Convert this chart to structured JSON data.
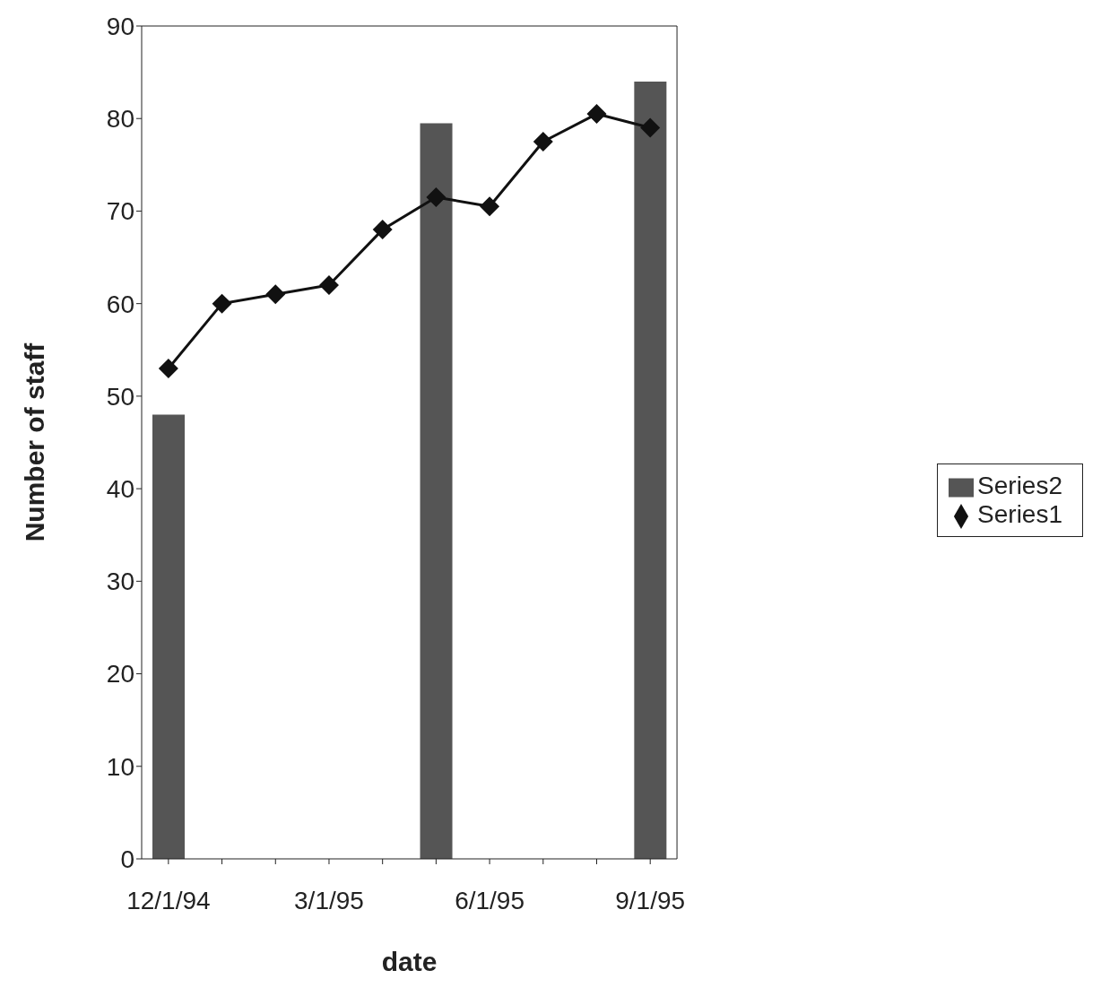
{
  "chart_data": {
    "type": "line",
    "xlabel": "date",
    "ylabel": "Number of staff",
    "categories": [
      "12/1/94",
      null,
      null,
      "3/1/95",
      null,
      null,
      "6/1/95",
      null,
      null,
      "9/1/95"
    ],
    "series": [
      {
        "name": "Series2",
        "type": "bar",
        "color": "#555555",
        "values": [
          48,
          null,
          null,
          null,
          null,
          79.5,
          null,
          null,
          null,
          84
        ]
      },
      {
        "name": "Series1",
        "color": "#111111",
        "values": [
          53,
          60,
          61,
          62,
          68,
          71.5,
          70.5,
          77.5,
          80.5,
          79
        ]
      }
    ],
    "ylim": [
      0,
      90
    ],
    "yticks": [
      0,
      10,
      20,
      30,
      40,
      50,
      60,
      70,
      80,
      90
    ],
    "grid": false,
    "legend": "right",
    "marker": "diamond",
    "line_style": "solid"
  }
}
